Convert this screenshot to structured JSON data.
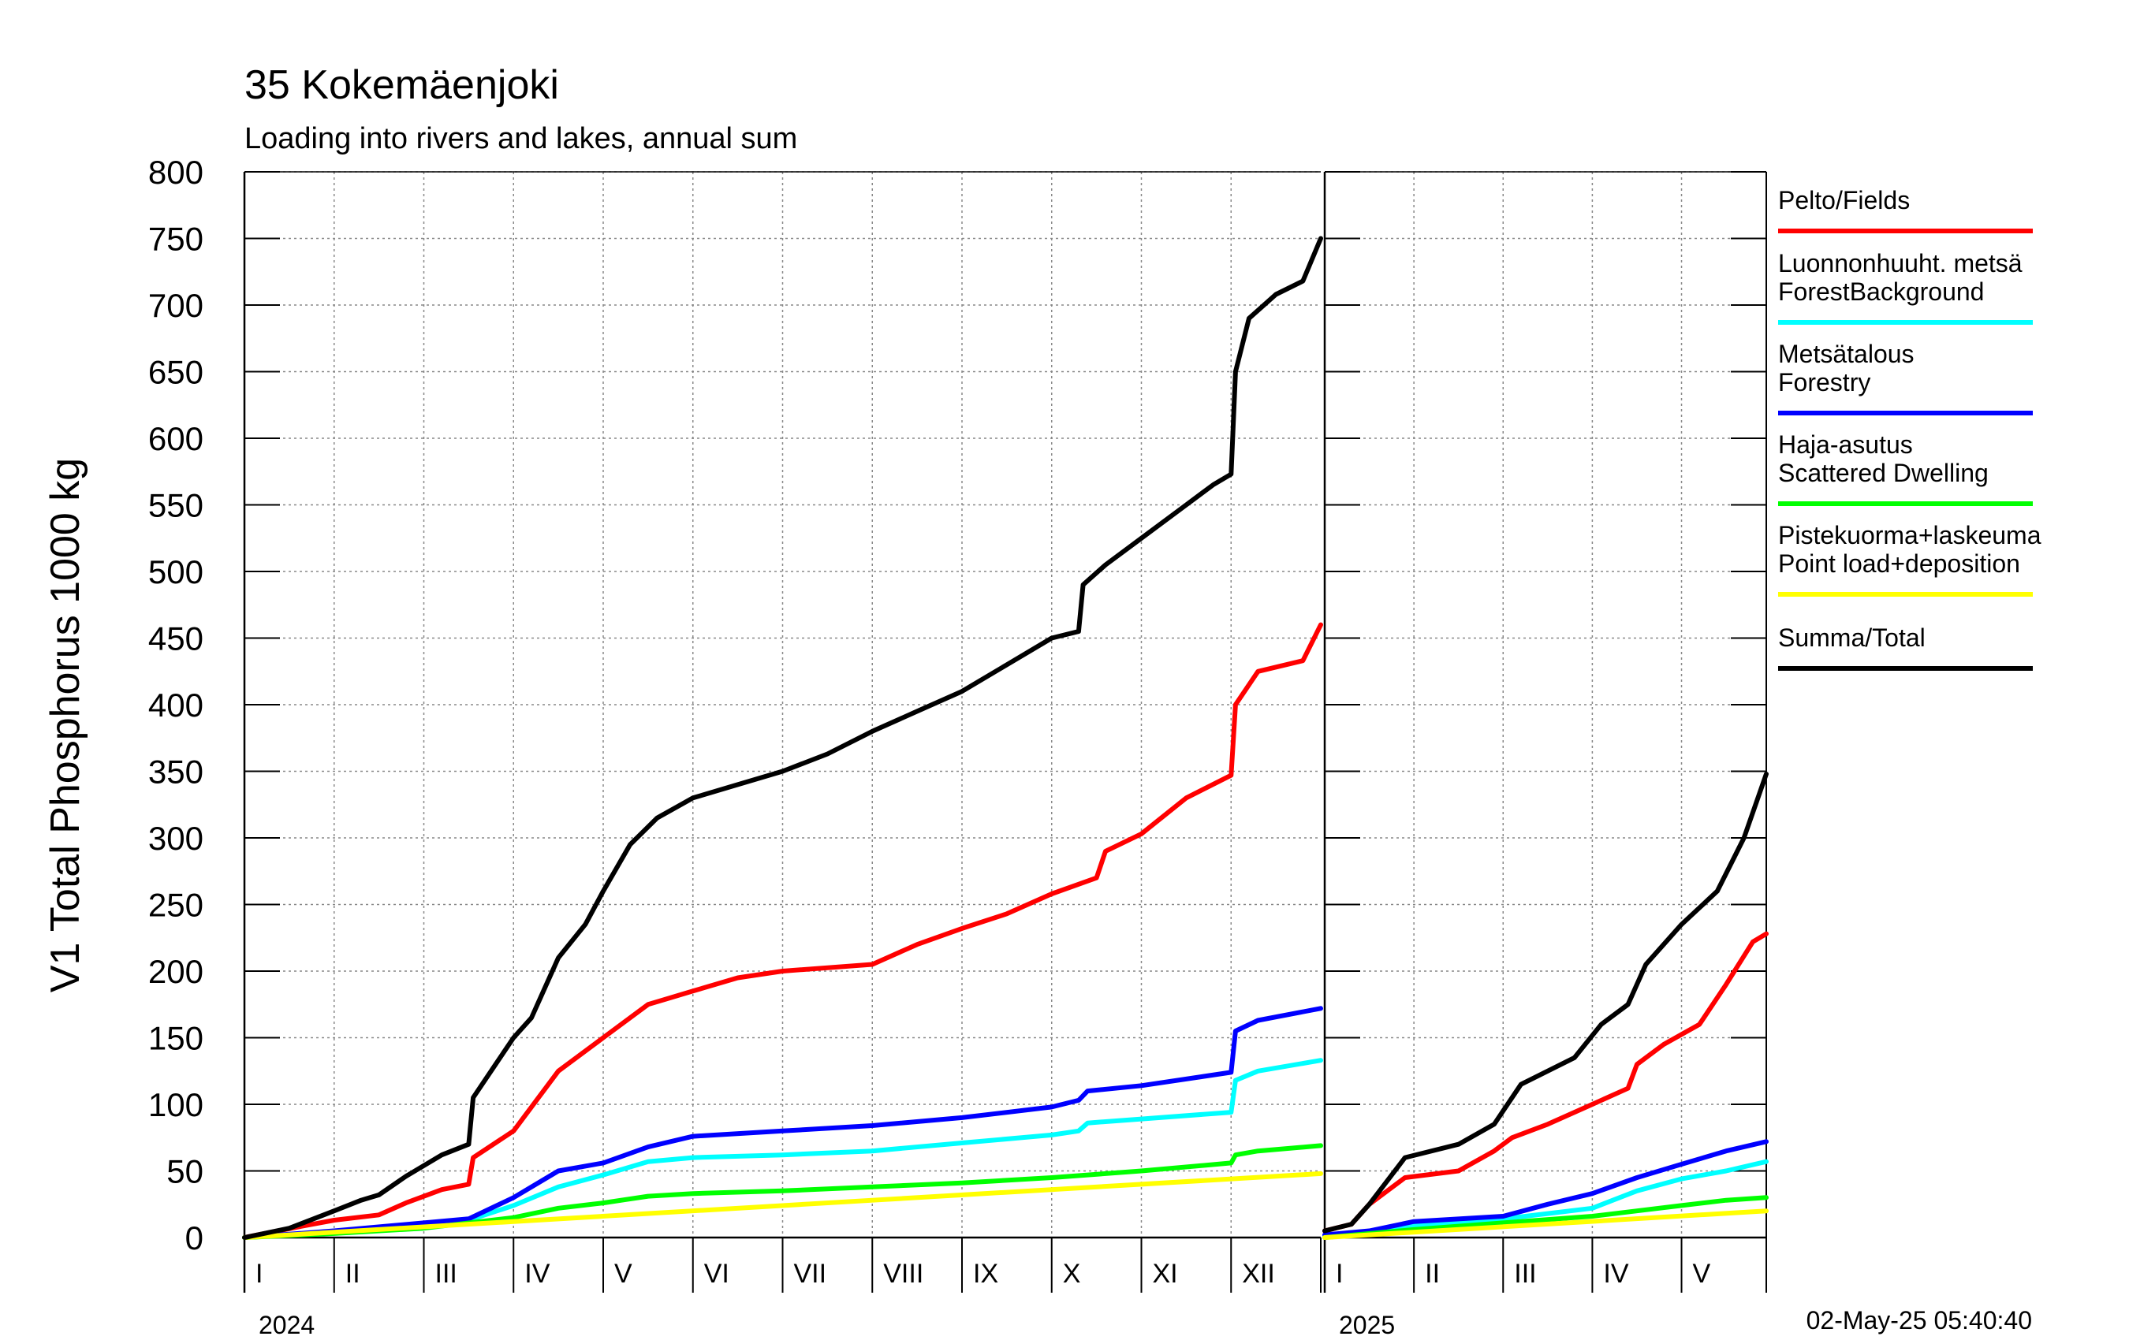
{
  "chart_data": {
    "type": "line",
    "title": "35 Kokemäenjoki",
    "subtitle": "Loading into rivers and lakes, annual sum",
    "ylabel": "V1 Total Phosphorus 1000 kg",
    "ylim": [
      0,
      800
    ],
    "yticks": [
      "0",
      "50",
      "100",
      "150",
      "200",
      "250",
      "300",
      "350",
      "400",
      "450",
      "500",
      "550",
      "600",
      "650",
      "700",
      "750",
      "800"
    ],
    "timestamp": "02-May-25 05:40:40",
    "grid": true,
    "legend_position": "right",
    "panels": [
      {
        "year": "2024",
        "months": [
          "I",
          "II",
          "III",
          "IV",
          "V",
          "VI",
          "VII",
          "VIII",
          "IX",
          "X",
          "XI",
          "XII"
        ],
        "x_range": [
          0,
          12
        ],
        "series": [
          {
            "key": "pelto",
            "points": [
              [
                0,
                0
              ],
              [
                0.6,
                8
              ],
              [
                1,
                13
              ],
              [
                1.5,
                17
              ],
              [
                1.8,
                26
              ],
              [
                2.2,
                36
              ],
              [
                2.5,
                40
              ],
              [
                2.55,
                60
              ],
              [
                3,
                80
              ],
              [
                3.5,
                125
              ],
              [
                4,
                150
              ],
              [
                4.5,
                175
              ],
              [
                5,
                185
              ],
              [
                5.5,
                195
              ],
              [
                6,
                200
              ],
              [
                7,
                205
              ],
              [
                7.5,
                220
              ],
              [
                8,
                232
              ],
              [
                8.5,
                243
              ],
              [
                9,
                258
              ],
              [
                9.5,
                270
              ],
              [
                9.6,
                290
              ],
              [
                10,
                303
              ],
              [
                10.5,
                330
              ],
              [
                11,
                347
              ],
              [
                11.05,
                400
              ],
              [
                11.3,
                425
              ],
              [
                11.8,
                433
              ],
              [
                12,
                460
              ]
            ]
          },
          {
            "key": "forestbg",
            "points": [
              [
                0,
                0
              ],
              [
                1,
                4
              ],
              [
                2,
                10
              ],
              [
                2.5,
                13
              ],
              [
                3,
                24
              ],
              [
                3.5,
                38
              ],
              [
                4,
                47
              ],
              [
                4.5,
                57
              ],
              [
                5,
                60
              ],
              [
                6,
                62
              ],
              [
                7,
                65
              ],
              [
                8,
                71
              ],
              [
                9,
                77
              ],
              [
                9.3,
                80
              ],
              [
                9.4,
                86
              ],
              [
                10,
                89
              ],
              [
                11,
                94
              ],
              [
                11.05,
                118
              ],
              [
                11.3,
                125
              ],
              [
                12,
                133
              ]
            ]
          },
          {
            "key": "forestry",
            "points": [
              [
                0,
                0
              ],
              [
                1,
                5
              ],
              [
                2,
                11
              ],
              [
                2.5,
                14
              ],
              [
                3,
                30
              ],
              [
                3.5,
                50
              ],
              [
                4,
                56
              ],
              [
                4.5,
                68
              ],
              [
                5,
                76
              ],
              [
                6,
                80
              ],
              [
                7,
                84
              ],
              [
                8,
                90
              ],
              [
                9,
                98
              ],
              [
                9.3,
                103
              ],
              [
                9.4,
                110
              ],
              [
                10,
                114
              ],
              [
                11,
                124
              ],
              [
                11.05,
                155
              ],
              [
                11.3,
                163
              ],
              [
                12,
                172
              ]
            ]
          },
          {
            "key": "scattered",
            "points": [
              [
                0,
                0
              ],
              [
                1,
                3
              ],
              [
                2,
                7
              ],
              [
                3,
                15
              ],
              [
                3.5,
                22
              ],
              [
                4,
                26
              ],
              [
                4.5,
                31
              ],
              [
                5,
                33
              ],
              [
                6,
                35
              ],
              [
                7,
                38
              ],
              [
                8,
                41
              ],
              [
                9,
                45
              ],
              [
                10,
                50
              ],
              [
                11,
                56
              ],
              [
                11.05,
                62
              ],
              [
                11.3,
                65
              ],
              [
                12,
                69
              ]
            ]
          },
          {
            "key": "point",
            "points": [
              [
                0,
                0
              ],
              [
                12,
                48
              ]
            ]
          },
          {
            "key": "total",
            "points": [
              [
                0,
                0
              ],
              [
                0.5,
                7
              ],
              [
                1,
                20
              ],
              [
                1.3,
                28
              ],
              [
                1.5,
                32
              ],
              [
                1.8,
                46
              ],
              [
                2.2,
                62
              ],
              [
                2.5,
                70
              ],
              [
                2.55,
                105
              ],
              [
                2.8,
                130
              ],
              [
                3,
                150
              ],
              [
                3.2,
                165
              ],
              [
                3.5,
                210
              ],
              [
                3.8,
                235
              ],
              [
                4,
                260
              ],
              [
                4.3,
                295
              ],
              [
                4.6,
                315
              ],
              [
                5,
                330
              ],
              [
                5.5,
                340
              ],
              [
                6,
                350
              ],
              [
                6.5,
                363
              ],
              [
                7,
                380
              ],
              [
                7.5,
                395
              ],
              [
                8,
                410
              ],
              [
                8.5,
                430
              ],
              [
                9,
                450
              ],
              [
                9.3,
                455
              ],
              [
                9.35,
                490
              ],
              [
                9.6,
                505
              ],
              [
                10,
                525
              ],
              [
                10.5,
                550
              ],
              [
                10.8,
                565
              ],
              [
                11,
                573
              ],
              [
                11.05,
                650
              ],
              [
                11.2,
                690
              ],
              [
                11.5,
                708
              ],
              [
                11.8,
                718
              ],
              [
                12,
                750
              ]
            ]
          }
        ]
      },
      {
        "year": "2025",
        "months": [
          "I",
          "II",
          "III",
          "IV",
          "V"
        ],
        "x_range": [
          0,
          4.95
        ],
        "series": [
          {
            "key": "pelto",
            "points": [
              [
                0,
                5
              ],
              [
                0.3,
                10
              ],
              [
                0.5,
                25
              ],
              [
                0.9,
                45
              ],
              [
                1.5,
                50
              ],
              [
                1.9,
                65
              ],
              [
                2.1,
                75
              ],
              [
                2.5,
                85
              ],
              [
                3,
                100
              ],
              [
                3.4,
                112
              ],
              [
                3.5,
                130
              ],
              [
                3.8,
                145
              ],
              [
                4.2,
                160
              ],
              [
                4.5,
                190
              ],
              [
                4.8,
                222
              ],
              [
                4.95,
                228
              ]
            ]
          },
          {
            "key": "forestbg",
            "points": [
              [
                0,
                1
              ],
              [
                0.5,
                3
              ],
              [
                1,
                9
              ],
              [
                2,
                14
              ],
              [
                2.5,
                18
              ],
              [
                3,
                22
              ],
              [
                3.5,
                35
              ],
              [
                4,
                44
              ],
              [
                4.5,
                50
              ],
              [
                4.95,
                57
              ]
            ]
          },
          {
            "key": "forestry",
            "points": [
              [
                0,
                2
              ],
              [
                0.5,
                5
              ],
              [
                1,
                12
              ],
              [
                2,
                16
              ],
              [
                2.5,
                25
              ],
              [
                3,
                33
              ],
              [
                3.5,
                45
              ],
              [
                4,
                55
              ],
              [
                4.5,
                65
              ],
              [
                4.95,
                72
              ]
            ]
          },
          {
            "key": "scattered",
            "points": [
              [
                0,
                0
              ],
              [
                1,
                6
              ],
              [
                2,
                11
              ],
              [
                3,
                16
              ],
              [
                3.5,
                20
              ],
              [
                4,
                24
              ],
              [
                4.5,
                28
              ],
              [
                4.95,
                30
              ]
            ]
          },
          {
            "key": "point",
            "points": [
              [
                0,
                0
              ],
              [
                4.95,
                20
              ]
            ]
          },
          {
            "key": "total",
            "points": [
              [
                0,
                5
              ],
              [
                0.3,
                10
              ],
              [
                0.5,
                25
              ],
              [
                0.9,
                60
              ],
              [
                1.5,
                70
              ],
              [
                1.9,
                85
              ],
              [
                2.2,
                115
              ],
              [
                2.8,
                135
              ],
              [
                3.1,
                160
              ],
              [
                3.4,
                175
              ],
              [
                3.6,
                205
              ],
              [
                4,
                235
              ],
              [
                4.4,
                260
              ],
              [
                4.7,
                300
              ],
              [
                4.95,
                348
              ]
            ]
          }
        ]
      }
    ],
    "legend": [
      {
        "key": "pelto",
        "lines": [
          "Pelto/Fields"
        ],
        "color": "#ff0000"
      },
      {
        "key": "forestbg",
        "lines": [
          "Luonnonhuuht. metsä",
          "ForestBackground"
        ],
        "color": "#00ffff"
      },
      {
        "key": "forestry",
        "lines": [
          "Metsätalous",
          "Forestry"
        ],
        "color": "#0000ff"
      },
      {
        "key": "scattered",
        "lines": [
          "Haja-asutus",
          "Scattered Dwelling"
        ],
        "color": "#00ff00"
      },
      {
        "key": "point",
        "lines": [
          "Pistekuorma+laskeuma",
          "Point load+deposition"
        ],
        "color": "#ffff00"
      },
      {
        "key": "total",
        "lines": [
          "Summa/Total"
        ],
        "color": "#000000"
      }
    ]
  }
}
